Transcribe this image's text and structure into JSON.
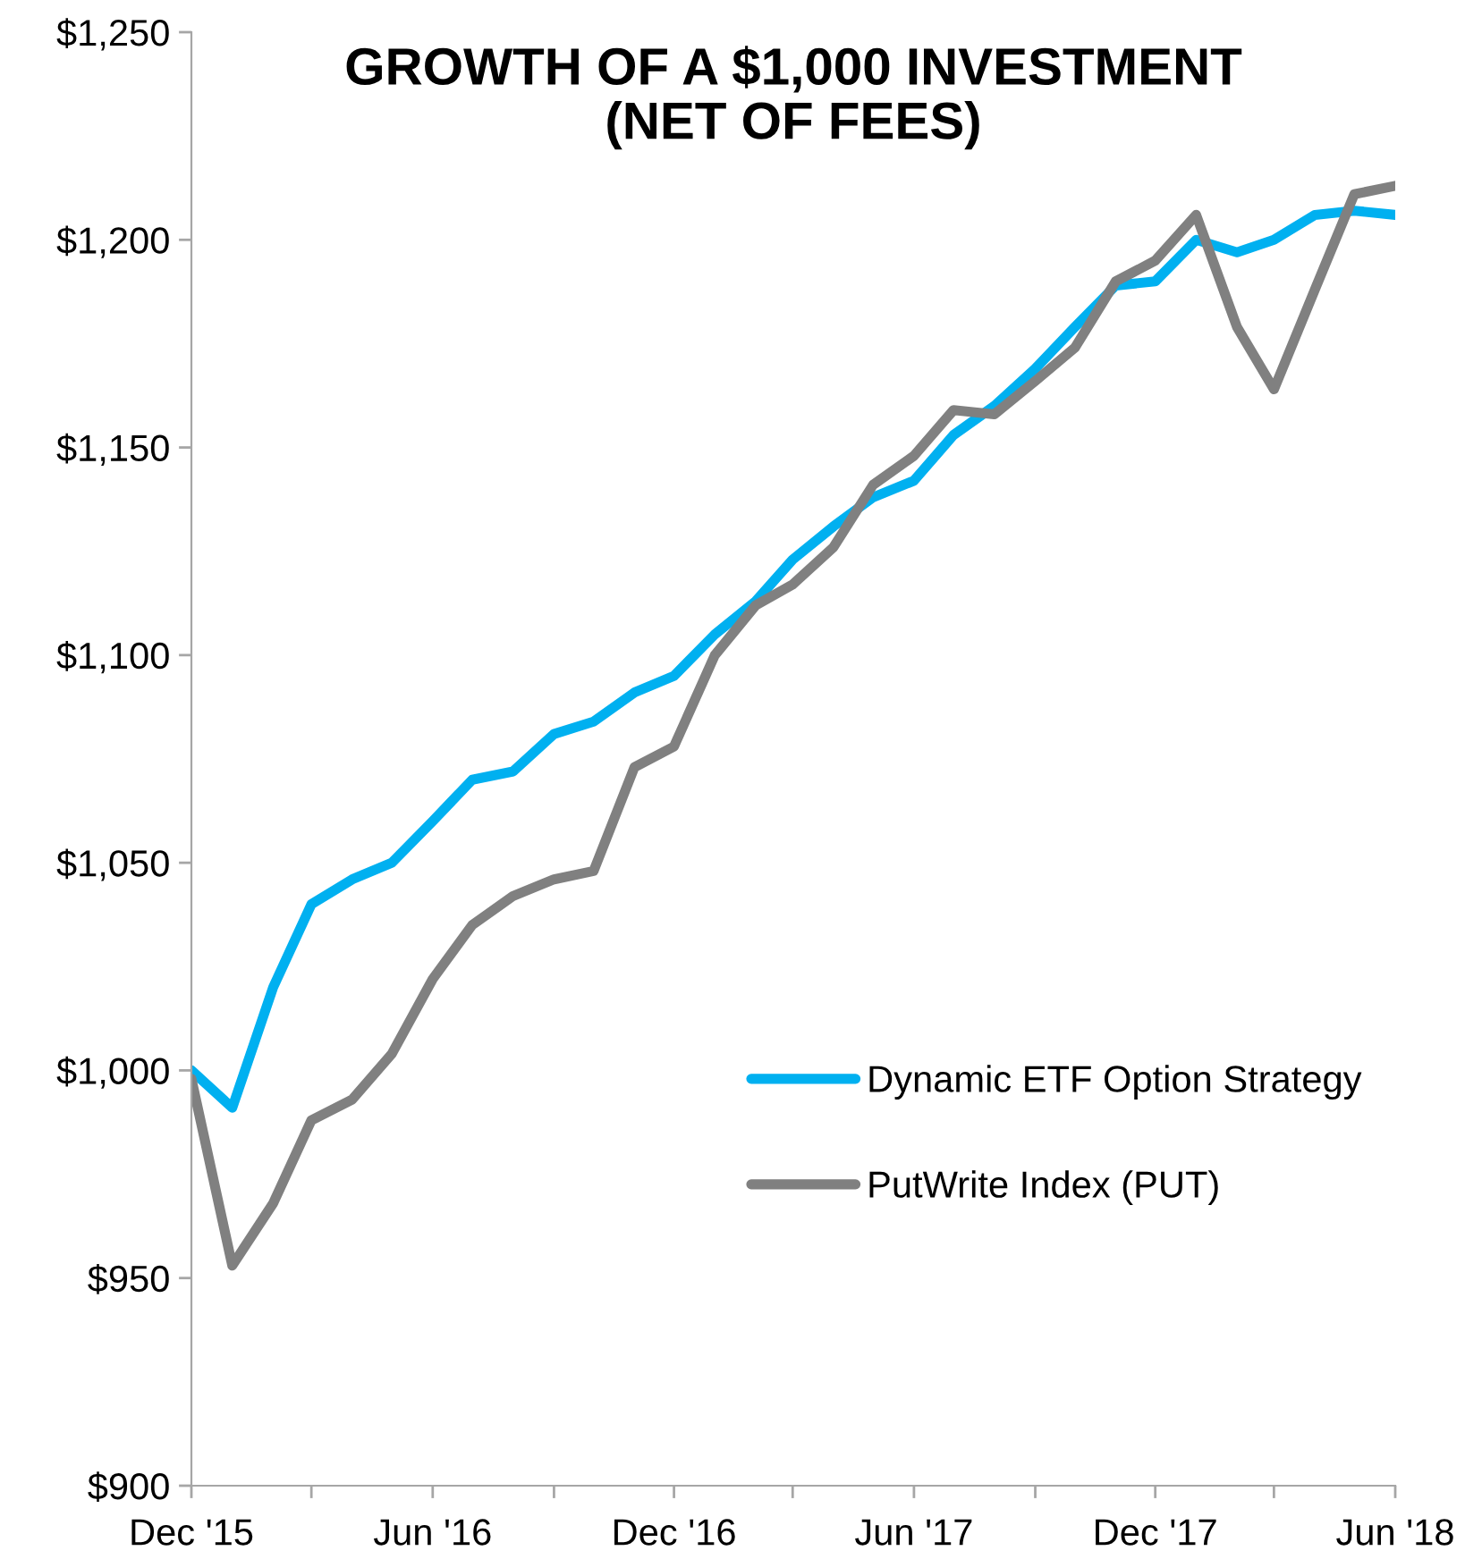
{
  "chart_data": {
    "type": "line",
    "title": "GROWTH OF A $1,000 INVESTMENT\n(NET OF FEES)",
    "x": [
      "2015-12",
      "2016-01",
      "2016-02",
      "2016-03",
      "2016-04",
      "2016-05",
      "2016-06",
      "2016-07",
      "2016-08",
      "2016-09",
      "2016-10",
      "2016-11",
      "2016-12",
      "2017-01",
      "2017-02",
      "2017-03",
      "2017-04",
      "2017-05",
      "2017-06",
      "2017-07",
      "2017-08",
      "2017-09",
      "2017-10",
      "2017-11",
      "2017-12",
      "2018-01",
      "2018-02",
      "2018-03",
      "2018-04",
      "2018-05",
      "2018-06"
    ],
    "series": [
      {
        "name": "Dynamic ETF Option Strategy",
        "color": "#00b0f0",
        "values": [
          1000,
          991,
          1020,
          1040,
          1046,
          1050,
          1060,
          1070,
          1072,
          1081,
          1084,
          1091,
          1095,
          1105,
          1113,
          1123,
          1131,
          1138,
          1142,
          1153,
          1160,
          1169,
          1179,
          1189,
          1190,
          1200,
          1197,
          1200,
          1206,
          1207,
          1206
        ]
      },
      {
        "name": "PutWrite Index (PUT)",
        "color": "#808080",
        "values": [
          998,
          953,
          968,
          988,
          993,
          1004,
          1022,
          1035,
          1042,
          1046,
          1048,
          1073,
          1078,
          1100,
          1112,
          1117,
          1126,
          1141,
          1148,
          1159,
          1158,
          1166,
          1174,
          1190,
          1195,
          1206,
          1179,
          1164,
          1188,
          1211,
          1213
        ]
      }
    ],
    "xlim": [
      "2015-12",
      "2018-06"
    ],
    "xticks": [
      {
        "value": "2015-12",
        "label": "Dec '15"
      },
      {
        "value": "2016-03",
        "label": null
      },
      {
        "value": "2016-06",
        "label": "Jun '16"
      },
      {
        "value": "2016-09",
        "label": null
      },
      {
        "value": "2016-12",
        "label": "Dec '16"
      },
      {
        "value": "2017-03",
        "label": null
      },
      {
        "value": "2017-06",
        "label": "Jun '17"
      },
      {
        "value": "2017-09",
        "label": null
      },
      {
        "value": "2017-12",
        "label": "Dec '17"
      },
      {
        "value": "2018-03",
        "label": null
      },
      {
        "value": "2018-06",
        "label": "Jun '18"
      }
    ],
    "ylim": [
      900,
      1250
    ],
    "yticks": [
      {
        "value": 900,
        "label": "$900"
      },
      {
        "value": 950,
        "label": "$950"
      },
      {
        "value": 1000,
        "label": "$1,000"
      },
      {
        "value": 1050,
        "label": "$1,050"
      },
      {
        "value": 1100,
        "label": "$1,100"
      },
      {
        "value": 1150,
        "label": "$1,150"
      },
      {
        "value": 1200,
        "label": "$1,200"
      },
      {
        "value": 1250,
        "label": "$1,250"
      }
    ],
    "grid": false,
    "legend": "lower right",
    "marker": "none",
    "line_style": "solid"
  }
}
